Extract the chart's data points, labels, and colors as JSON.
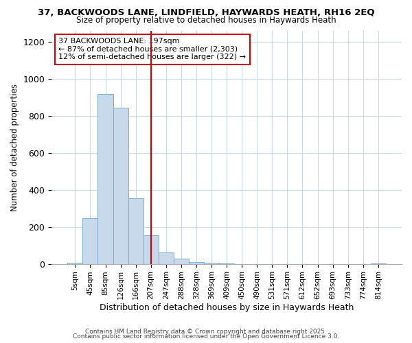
{
  "title1": "37, BACKWOODS LANE, LINDFIELD, HAYWARDS HEATH, RH16 2EQ",
  "title2": "Size of property relative to detached houses in Haywards Heath",
  "xlabel": "Distribution of detached houses by size in Haywards Heath",
  "ylabel": "Number of detached properties",
  "annotation_title": "37 BACKWOODS LANE: 197sqm",
  "annotation_line1": "← 87% of detached houses are smaller (2,303)",
  "annotation_line2": "12% of semi-detached houses are larger (322) →",
  "bar_color": "#c9d9ec",
  "bar_edge_color": "#7aadd4",
  "vline_color": "#cc0000",
  "annotation_box_color": "#cc0000",
  "background_color": "#ffffff",
  "plot_bg_color": "#ffffff",
  "grid_color": "#c8d8e8",
  "categories": [
    "5sqm",
    "45sqm",
    "85sqm",
    "126sqm",
    "166sqm",
    "207sqm",
    "247sqm",
    "288sqm",
    "328sqm",
    "369sqm",
    "409sqm",
    "450sqm",
    "490sqm",
    "531sqm",
    "571sqm",
    "612sqm",
    "652sqm",
    "693sqm",
    "733sqm",
    "774sqm",
    "814sqm"
  ],
  "values": [
    5,
    248,
    920,
    845,
    355,
    155,
    62,
    30,
    10,
    5,
    2,
    0,
    0,
    0,
    0,
    0,
    0,
    0,
    0,
    0,
    2
  ],
  "vline_x": 5,
  "ylim": [
    0,
    1260
  ],
  "yticks": [
    0,
    200,
    400,
    600,
    800,
    1000,
    1200
  ],
  "footer1": "Contains HM Land Registry data © Crown copyright and database right 2025.",
  "footer2": "Contains public sector information licensed under the Open Government Licence 3.0."
}
